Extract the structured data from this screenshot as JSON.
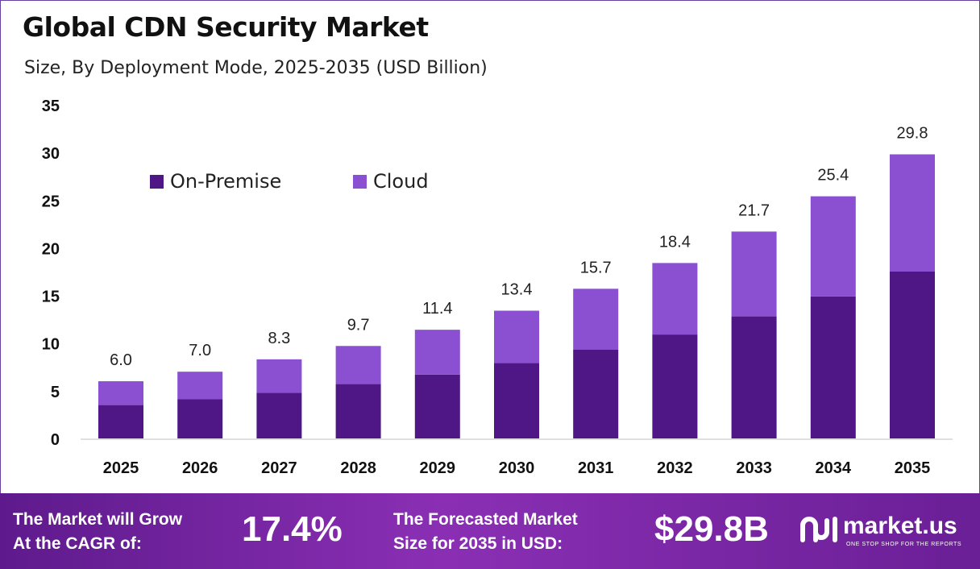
{
  "header": {
    "title": "Global CDN Security Market",
    "subtitle": "Size, By Deployment Mode, 2025-2035 (USD Billion)"
  },
  "colors": {
    "on_premise": "#4f1785",
    "cloud": "#8b4fd1",
    "footer_start": "#5e1a8c",
    "footer_end": "#8a2fb4"
  },
  "chart_data": {
    "type": "bar",
    "stacked": true,
    "categories": [
      "2025",
      "2026",
      "2027",
      "2028",
      "2029",
      "2030",
      "2031",
      "2032",
      "2033",
      "2034",
      "2035"
    ],
    "series": [
      {
        "name": "On-Premise",
        "values": [
          3.5,
          4.1,
          4.8,
          5.7,
          6.7,
          7.9,
          9.3,
          10.9,
          12.8,
          14.9,
          17.5
        ]
      },
      {
        "name": "Cloud",
        "values": [
          2.5,
          2.9,
          3.5,
          4.0,
          4.7,
          5.5,
          6.4,
          7.5,
          8.9,
          10.5,
          12.3
        ]
      }
    ],
    "totals": [
      "6.0",
      "7.0",
      "8.3",
      "9.7",
      "11.4",
      "13.4",
      "15.7",
      "18.4",
      "21.7",
      "25.4",
      "29.8"
    ],
    "yticks": [
      "0",
      "5",
      "10",
      "15",
      "20",
      "25",
      "30",
      "35"
    ],
    "ylim": [
      0,
      35
    ],
    "legend_position": "top-left",
    "grid": false
  },
  "footer": {
    "cagr_label_line1": "The Market will Grow",
    "cagr_label_line2": "At the CAGR of:",
    "cagr_value": "17.4%",
    "forecast_label_line1": "The Forecasted Market",
    "forecast_label_line2": "Size for 2035 in USD:",
    "forecast_value": "$29.8B",
    "brand_name": "market.us",
    "brand_tagline": "ONE STOP SHOP FOR THE REPORTS",
    "brand_icon": "market-us-logo-icon"
  }
}
